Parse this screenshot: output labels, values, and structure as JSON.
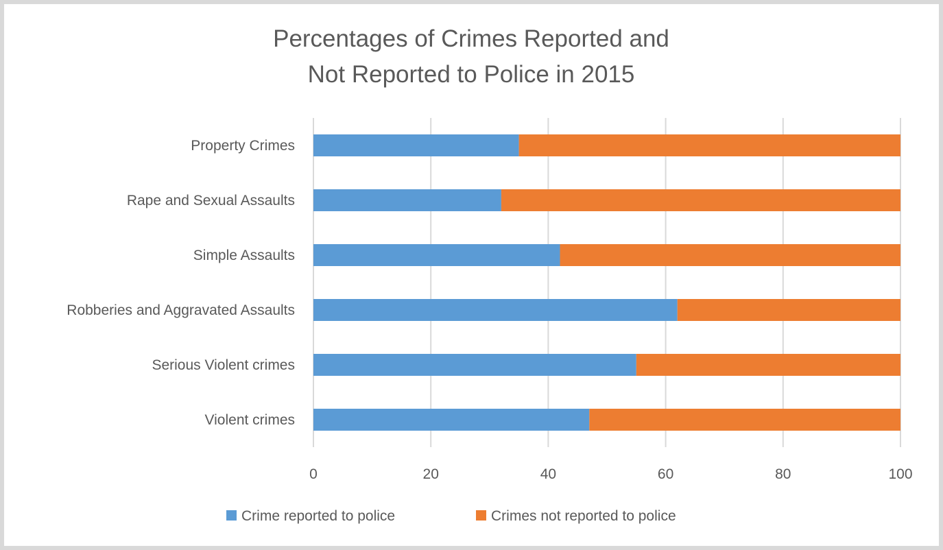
{
  "chart_data": {
    "type": "bar",
    "orientation": "horizontal",
    "stacked": true,
    "title_lines": [
      "Percentages of Crimes Reported and",
      "Not Reported to Police in 2015"
    ],
    "categories": [
      "Property Crimes",
      "Rape and Sexual Assaults",
      "Simple Assaults",
      "Robberies and Aggravated Assaults",
      "Serious Violent crimes",
      "Violent crimes"
    ],
    "series": [
      {
        "name": "Crime reported to police",
        "color": "#5b9bd5",
        "values": [
          35,
          32,
          42,
          62,
          55,
          47
        ]
      },
      {
        "name": "Crimes not reported to police",
        "color": "#ed7d31",
        "values": [
          65,
          68,
          58,
          38,
          45,
          53
        ]
      }
    ],
    "xlim": [
      0,
      100
    ],
    "xticks": [
      "0",
      "20",
      "40",
      "60",
      "80",
      "100"
    ],
    "grid": true,
    "legend_position": "bottom"
  }
}
